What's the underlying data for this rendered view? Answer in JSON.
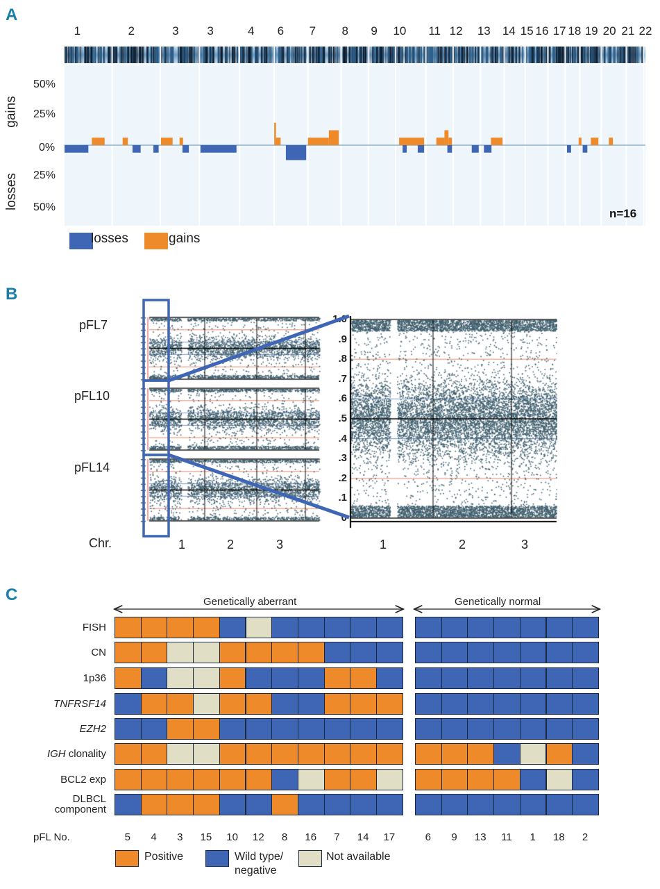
{
  "panels": {
    "a": "A",
    "b": "B",
    "c": "C"
  },
  "chart_data": [
    {
      "type": "area",
      "title": "",
      "ylabel_top": "gains",
      "ylabel_bottom": "losses",
      "yticks": [
        "50%",
        "25%",
        "0%",
        "25%",
        "50%"
      ],
      "ylim": [
        -60,
        60
      ],
      "x_units": "genome position index (0-1000)",
      "xlim": [
        0,
        1000
      ],
      "chromosome_labels": [
        {
          "label": "1",
          "pos": 22
        },
        {
          "label": "2",
          "pos": 115
        },
        {
          "label": "3",
          "pos": 191
        },
        {
          "label": "3",
          "pos": 251
        },
        {
          "label": "4",
          "pos": 321
        },
        {
          "label": "6",
          "pos": 372
        },
        {
          "label": "7",
          "pos": 427
        },
        {
          "label": "8",
          "pos": 483
        },
        {
          "label": "9",
          "pos": 533
        },
        {
          "label": "10",
          "pos": 577
        },
        {
          "label": "11",
          "pos": 637
        },
        {
          "label": "12",
          "pos": 674
        },
        {
          "label": "13",
          "pos": 722
        },
        {
          "label": "14",
          "pos": 765
        },
        {
          "label": "15",
          "pos": 796
        },
        {
          "label": "16",
          "pos": 822
        },
        {
          "label": "17",
          "pos": 852
        },
        {
          "label": "18",
          "pos": 878
        },
        {
          "label": "19",
          "pos": 907
        },
        {
          "label": "20",
          "pos": 938
        },
        {
          "label": "21",
          "pos": 970
        },
        {
          "label": "22",
          "pos": 1000
        }
      ],
      "chromosome_boundaries": [
        82,
        165,
        232,
        301,
        361,
        419,
        476,
        523,
        570,
        622,
        669,
        716,
        757,
        793,
        832,
        862,
        887,
        924,
        967,
        997
      ],
      "series": [
        {
          "name": "gains",
          "color": "#ee8a2a",
          "segments": [
            [
              47,
              69,
              6.25
            ],
            [
              100,
              109,
              6.25
            ],
            [
              166,
              186,
              6.25
            ],
            [
              198,
              204,
              6.25
            ],
            [
              361,
              364,
              18.75
            ],
            [
              364,
              372,
              6.25
            ],
            [
              419,
              455,
              6.25
            ],
            [
              455,
              472,
              12.5
            ],
            [
              576,
              619,
              6.25
            ],
            [
              640,
              654,
              6.25
            ],
            [
              654,
              661,
              12.5
            ],
            [
              661,
              667,
              6.25
            ],
            [
              734,
              754,
              6.25
            ],
            [
              885,
              890,
              6.25
            ],
            [
              906,
              919,
              6.25
            ],
            [
              937,
              944,
              6.25
            ]
          ]
        },
        {
          "name": "losses",
          "color": "#3e66b4",
          "segments": [
            [
              0,
              41,
              6.25
            ],
            [
              117,
              131,
              6.25
            ],
            [
              153,
              162,
              6.25
            ],
            [
              203,
              214,
              6.25
            ],
            [
              234,
              296,
              6.25
            ],
            [
              381,
              416,
              12.5
            ],
            [
              582,
              589,
              6.25
            ],
            [
              608,
              619,
              6.25
            ],
            [
              659,
              667,
              6.25
            ],
            [
              701,
              713,
              6.25
            ],
            [
              722,
              735,
              6.25
            ],
            [
              865,
              872,
              6.25
            ],
            [
              892,
              900,
              6.25
            ]
          ]
        }
      ],
      "annotation": "n=16",
      "legend": [
        {
          "label": "losses",
          "color": "#3e66b4"
        },
        {
          "label": "gains",
          "color": "#ee8a2a"
        }
      ],
      "legend_position": "bottom-left"
    },
    {
      "type": "scatter",
      "samples": [
        "pFL7",
        "pFL10",
        "pFL14"
      ],
      "xlabel": "Chr.",
      "chromosomes": [
        "1",
        "2",
        "3"
      ],
      "zoom_chromosomes": [
        "1",
        "2",
        "3"
      ],
      "zoom_yticks": [
        "1.0",
        ".9",
        ".8",
        ".7",
        ".6",
        ".5",
        ".4",
        ".3",
        ".2",
        ".1",
        "0"
      ],
      "ylim": [
        0,
        1
      ],
      "reference_lines": {
        "black": 0.5,
        "blue": [
          0.4,
          0.6
        ],
        "red": [
          0.2,
          0.8
        ]
      }
    },
    {
      "type": "table",
      "groups": [
        {
          "label": "Genetically aberrant",
          "columns": [
            "5",
            "4",
            "3",
            "15",
            "10",
            "12",
            "8",
            "16",
            "7",
            "14",
            "17"
          ]
        },
        {
          "label": "Genetically normal",
          "columns": [
            "6",
            "9",
            "13",
            "11",
            "1",
            "18",
            "2"
          ]
        }
      ],
      "xlabel": "pFL No.",
      "rows": [
        {
          "label": "FISH",
          "italic": "",
          "rest": "FISH",
          "aberrant": "PPPPBNBBBBB",
          "normal": "BBBBBBB"
        },
        {
          "label": "CN",
          "italic": "",
          "rest": "CN",
          "aberrant": "PPNNPPPPBBB",
          "normal": "BBBBBBB"
        },
        {
          "label": "1p36",
          "italic": "",
          "rest": "1p36",
          "aberrant": "PBNNPBBBPPB",
          "normal": "BBBBBBB"
        },
        {
          "label": "TNFRSF14",
          "italic": "TNFRSF14",
          "rest": "",
          "aberrant": "BPPNPPBBPPP",
          "normal": "BBBBBBB"
        },
        {
          "label": "EZH2",
          "italic": "EZH2",
          "rest": "",
          "aberrant": "BBPPBBBBBBB",
          "normal": "BBBBBBB"
        },
        {
          "label": "IGH clonality",
          "italic": "IGH",
          "rest": " clonality",
          "aberrant": "PPNNPPPPPPP",
          "normal": "PPPBNPB"
        },
        {
          "label": "BCL2 exp",
          "italic": "",
          "rest": "BCL2 exp",
          "aberrant": "PPPPPPBNPPN",
          "normal": "PPPPBNB"
        },
        {
          "label": "DLBCL component",
          "italic": "",
          "rest": "DLBCL\ncomponent",
          "aberrant": "BPPPBBPBBBB",
          "normal": "BBBBBBB"
        }
      ],
      "legend": [
        {
          "key": "P",
          "label": "Positive",
          "color": "#ee8a2a"
        },
        {
          "key": "B",
          "label": "Wild type/\nnegative",
          "color": "#3e66b4"
        },
        {
          "key": "N",
          "label": "Not available",
          "color": "#e0dfc6"
        }
      ]
    }
  ]
}
